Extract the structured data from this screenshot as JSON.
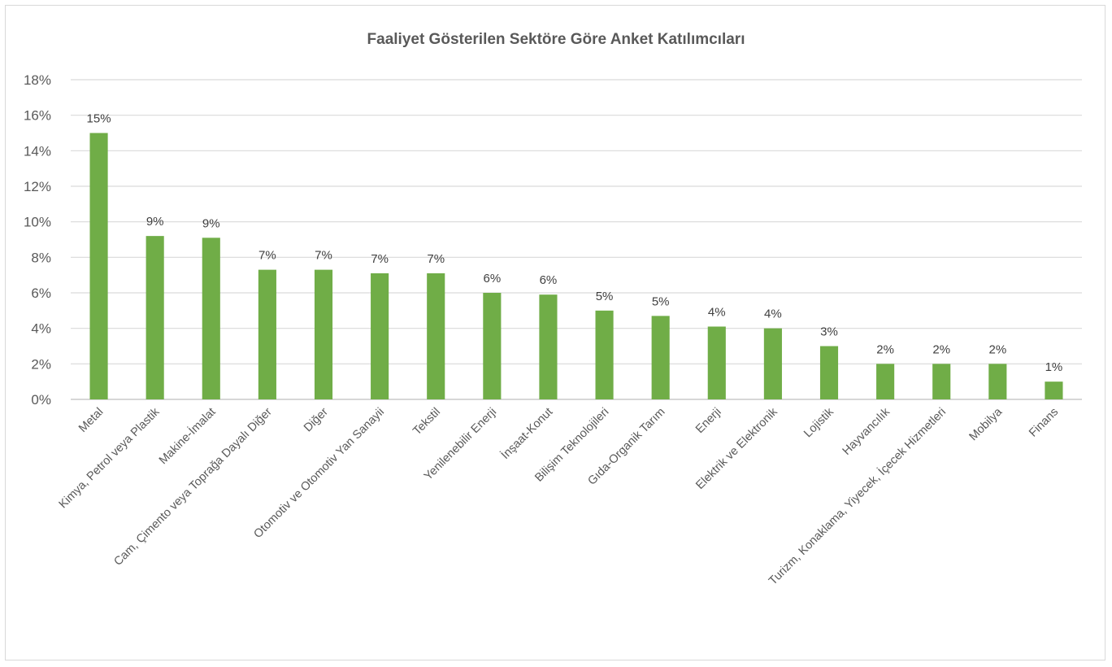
{
  "chart_data": {
    "type": "bar",
    "title": "Faaliyet Gösterilen Sektöre Göre Anket Katılımcıları",
    "xlabel": "",
    "ylabel": "",
    "ylim": [
      0,
      18
    ],
    "ytick_labels": [
      "0%",
      "2%",
      "4%",
      "6%",
      "8%",
      "10%",
      "12%",
      "14%",
      "16%",
      "18%"
    ],
    "grid": true,
    "legend": "none",
    "bar_color": "#70ad47",
    "categories": [
      "Metal",
      "Kimya, Petrol veya Plastik",
      "Makine-İmalat",
      "Cam, Çimento veya Toprağa Dayalı Diğer",
      "Diğer",
      "Otomotiv ve Otomotiv Yan Sanayii",
      "Tekstil",
      "Yenilenebilir Enerji",
      "İnşaat-Konut",
      "Bilişim Teknolojileri",
      "Gıda-Organik Tarım",
      "Enerji",
      "Elektrik ve Elektronik",
      "Lojistik",
      "Hayvancılık",
      "Turizm, Konaklama, Yiyecek, İçecek Hizmetleri",
      "Mobilya",
      "Finans"
    ],
    "values": [
      15.0,
      9.2,
      9.1,
      7.3,
      7.3,
      7.1,
      7.1,
      6.0,
      5.9,
      5.0,
      4.7,
      4.1,
      4.0,
      3.0,
      2.0,
      2.0,
      2.0,
      1.0
    ],
    "data_labels": [
      "15%",
      "9%",
      "9%",
      "7%",
      "7%",
      "7%",
      "7%",
      "6%",
      "6%",
      "5%",
      "5%",
      "4%",
      "4%",
      "3%",
      "2%",
      "2%",
      "2%",
      "1%"
    ]
  }
}
